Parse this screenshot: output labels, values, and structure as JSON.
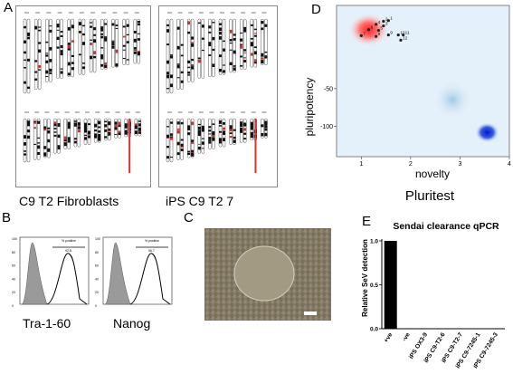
{
  "panels": {
    "A": {
      "label": "A",
      "karyotype_left_caption": "C9 T2 Fibroblasts",
      "karyotype_right_caption": "iPS C9 T2 7"
    },
    "B": {
      "label": "B",
      "hist1_caption": "Tra-1-60",
      "hist2_caption": "Nanog",
      "hist1_gate_label": "% positive",
      "hist1_gate_value": "92.8",
      "hist2_gate_label": "% positive",
      "hist2_gate_value": "96.7"
    },
    "C": {
      "label": "C"
    },
    "D": {
      "label": "D",
      "ylabel": "pluripotency",
      "xlabel": "novelty",
      "caption": "Pluritest",
      "x_ticks": [
        "1",
        "2",
        "3",
        "4"
      ],
      "y_ticks": [
        "-50",
        "-100"
      ],
      "cluster_numbers": [
        "1",
        "2",
        "3",
        "4",
        "5",
        "6",
        "7",
        "8",
        "9",
        "10",
        "11",
        "12"
      ]
    },
    "E": {
      "label": "E",
      "title": "Sendai clearance qPCR",
      "ylabel": "Relative SeV detection",
      "y_ticks": [
        "0.0",
        "0.5",
        "1.0"
      ]
    }
  },
  "chart_data": [
    {
      "type": "scatter",
      "title": "",
      "xlabel": "novelty",
      "ylabel": "pluripotency",
      "xlim": [
        0.5,
        4
      ],
      "ylim": [
        -140,
        60
      ],
      "x_ticks": [
        1,
        2,
        3,
        4
      ],
      "y_ticks": [
        -50,
        -100
      ],
      "series": [
        {
          "values": [
            {
              "label": "1",
              "x": 1.55,
              "y": 40
            },
            {
              "label": "2",
              "x": 1.45,
              "y": 39
            },
            {
              "label": "3",
              "x": 1.45,
              "y": 33
            },
            {
              "label": "4",
              "x": 1.3,
              "y": 35
            },
            {
              "label": "5",
              "x": 1.35,
              "y": 27
            },
            {
              "label": "6",
              "x": 1.15,
              "y": 28
            },
            {
              "label": "7",
              "x": 1.0,
              "y": 20
            },
            {
              "label": "8",
              "x": 1.3,
              "y": 19
            },
            {
              "label": "9",
              "x": 1.55,
              "y": 21
            },
            {
              "label": "10",
              "x": 1.75,
              "y": 21
            },
            {
              "label": "11",
              "x": 1.85,
              "y": 21
            },
            {
              "label": "12",
              "x": 1.8,
              "y": 14
            }
          ]
        }
      ],
      "legend": "none",
      "grid": false
    },
    {
      "type": "bar",
      "title": "Sendai clearance qPCR",
      "xlabel": "",
      "ylabel": "Relative SeV detection",
      "ylim": [
        0,
        1.0
      ],
      "y_ticks": [
        0.0,
        0.5,
        1.0
      ],
      "categories": [
        "+ve",
        "-ve",
        "iPS OX3-9",
        "iPS C9-T2-6",
        "iPS C9-T2-7",
        "iPS C9-7245-1",
        "iPS C9-7245-3"
      ],
      "values": [
        1.0,
        0,
        0,
        0,
        0,
        0,
        0
      ],
      "legend": "none",
      "grid": false
    }
  ]
}
